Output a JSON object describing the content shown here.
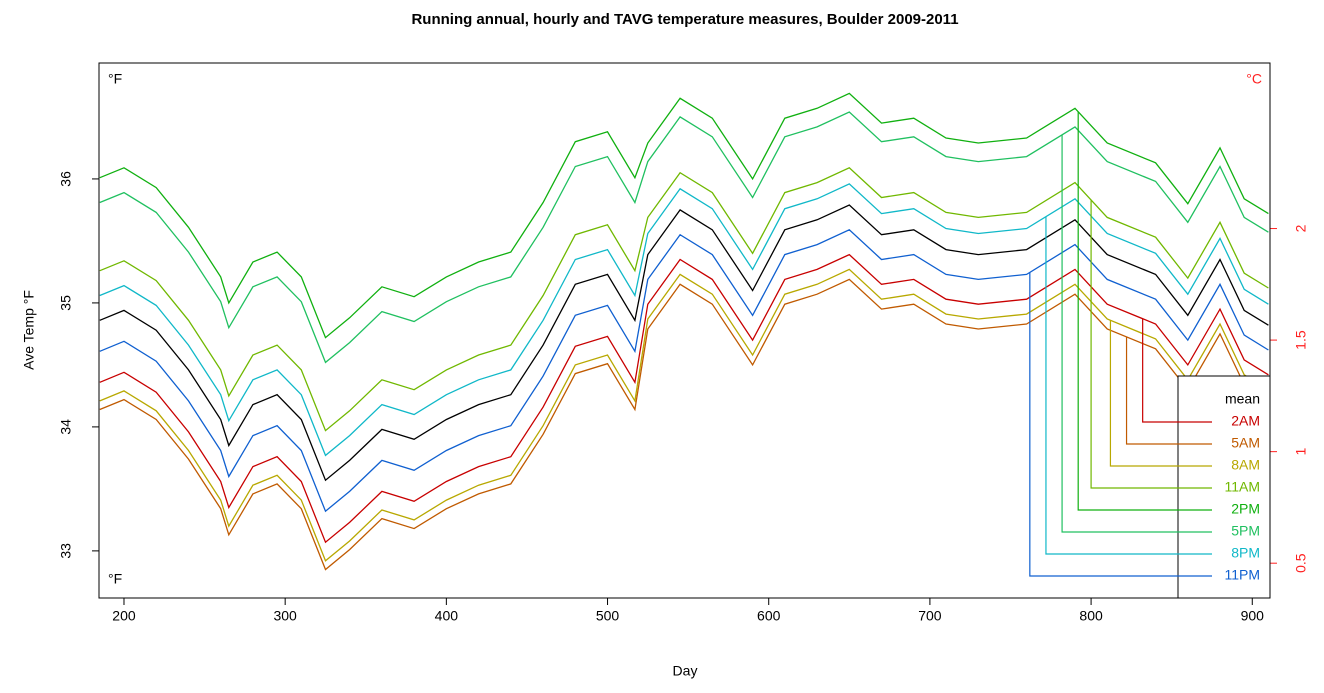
{
  "chart_data": {
    "type": "line",
    "title": "Running annual, hourly and TAVG temperature measures, Boulder 2009-2011",
    "x_label": "Day",
    "y_label": "Ave Temp °F",
    "corner_labels": {
      "top_left": "°F",
      "bottom_left": "°F",
      "top_right": "°C"
    },
    "xlim": [
      184.5,
      911
    ],
    "xticks": [
      200,
      300,
      400,
      500,
      600,
      700,
      800,
      900
    ],
    "ylim": [
      32.62,
      36.935
    ],
    "yticks": [
      33,
      34,
      35,
      36
    ],
    "y2lim": [
      0.344,
      2.742
    ],
    "y2ticks": [
      0.5,
      1,
      1.5,
      2
    ],
    "y2color": "#ff2020",
    "legend_position": "bottom-right",
    "x": [
      185,
      200,
      220,
      240,
      260,
      265,
      280,
      295,
      310,
      325,
      340,
      360,
      380,
      400,
      420,
      440,
      460,
      480,
      500,
      517,
      525,
      545,
      565,
      590,
      610,
      630,
      650,
      670,
      690,
      710,
      730,
      760,
      790,
      810,
      840,
      860,
      880,
      895,
      910
    ],
    "series": [
      {
        "name": "mean",
        "color": "#000000",
        "values": [
          34.86,
          34.94,
          34.78,
          34.46,
          34.06,
          33.85,
          34.18,
          34.26,
          34.06,
          33.57,
          33.73,
          33.98,
          33.9,
          34.06,
          34.18,
          34.26,
          34.66,
          35.15,
          35.23,
          34.86,
          35.39,
          35.75,
          35.59,
          35.1,
          35.59,
          35.67,
          35.79,
          35.55,
          35.59,
          35.43,
          35.39,
          35.43,
          35.67,
          35.39,
          35.23,
          34.9,
          35.35,
          34.94,
          34.82
        ]
      },
      {
        "name": "2AM",
        "color": "#c80000",
        "values": [
          34.36,
          34.44,
          34.28,
          33.96,
          33.56,
          33.35,
          33.68,
          33.76,
          33.56,
          33.07,
          33.23,
          33.48,
          33.4,
          33.56,
          33.68,
          33.76,
          34.16,
          34.65,
          34.73,
          34.36,
          34.99,
          35.35,
          35.19,
          34.7,
          35.19,
          35.27,
          35.39,
          35.15,
          35.19,
          35.03,
          34.99,
          35.03,
          35.27,
          34.99,
          34.83,
          34.5,
          34.95,
          34.54,
          34.42
        ]
      },
      {
        "name": "5AM",
        "color": "#c05a00",
        "values": [
          34.14,
          34.22,
          34.06,
          33.74,
          33.34,
          33.13,
          33.46,
          33.54,
          33.34,
          32.85,
          33.01,
          33.26,
          33.18,
          33.34,
          33.46,
          33.54,
          33.94,
          34.43,
          34.51,
          34.14,
          34.79,
          35.15,
          34.99,
          34.5,
          34.99,
          35.07,
          35.19,
          34.95,
          34.99,
          34.83,
          34.79,
          34.83,
          35.07,
          34.79,
          34.63,
          34.3,
          34.75,
          34.34,
          34.22
        ]
      },
      {
        "name": "8AM",
        "color": "#b8a800",
        "values": [
          34.21,
          34.29,
          34.13,
          33.81,
          33.41,
          33.2,
          33.53,
          33.61,
          33.41,
          32.92,
          33.08,
          33.33,
          33.25,
          33.41,
          33.53,
          33.61,
          34.01,
          34.5,
          34.58,
          34.21,
          34.87,
          35.23,
          35.07,
          34.58,
          35.07,
          35.15,
          35.27,
          35.03,
          35.07,
          34.91,
          34.87,
          34.91,
          35.15,
          34.87,
          34.71,
          34.38,
          34.83,
          34.42,
          34.3
        ]
      },
      {
        "name": "11AM",
        "color": "#70b800",
        "values": [
          35.26,
          35.34,
          35.18,
          34.86,
          34.46,
          34.25,
          34.58,
          34.66,
          34.46,
          33.97,
          34.13,
          34.38,
          34.3,
          34.46,
          34.58,
          34.66,
          35.06,
          35.55,
          35.63,
          35.26,
          35.69,
          36.05,
          35.89,
          35.4,
          35.89,
          35.97,
          36.09,
          35.85,
          35.89,
          35.73,
          35.69,
          35.73,
          35.97,
          35.69,
          35.53,
          35.2,
          35.65,
          35.24,
          35.12
        ]
      },
      {
        "name": "2PM",
        "color": "#10b010",
        "values": [
          36.01,
          36.09,
          35.93,
          35.61,
          35.21,
          35.0,
          35.33,
          35.41,
          35.21,
          34.72,
          34.88,
          35.13,
          35.05,
          35.21,
          35.33,
          35.41,
          35.81,
          36.3,
          36.38,
          36.01,
          36.29,
          36.65,
          36.49,
          36.0,
          36.49,
          36.57,
          36.69,
          36.45,
          36.49,
          36.33,
          36.29,
          36.33,
          36.57,
          36.29,
          36.13,
          35.8,
          36.25,
          35.84,
          35.72
        ]
      },
      {
        "name": "5PM",
        "color": "#20c060",
        "values": [
          35.81,
          35.89,
          35.73,
          35.41,
          35.01,
          34.8,
          35.13,
          35.21,
          35.01,
          34.52,
          34.68,
          34.93,
          34.85,
          35.01,
          35.13,
          35.21,
          35.61,
          36.1,
          36.18,
          35.81,
          36.14,
          36.5,
          36.34,
          35.85,
          36.34,
          36.42,
          36.54,
          36.3,
          36.34,
          36.18,
          36.14,
          36.18,
          36.42,
          36.14,
          35.98,
          35.65,
          36.1,
          35.69,
          35.57
        ]
      },
      {
        "name": "8PM",
        "color": "#10b8c8",
        "values": [
          35.06,
          35.14,
          34.98,
          34.66,
          34.26,
          34.05,
          34.38,
          34.46,
          34.26,
          33.77,
          33.93,
          34.18,
          34.1,
          34.26,
          34.38,
          34.46,
          34.86,
          35.35,
          35.43,
          35.06,
          35.56,
          35.92,
          35.76,
          35.27,
          35.76,
          35.84,
          35.96,
          35.72,
          35.76,
          35.6,
          35.56,
          35.6,
          35.84,
          35.56,
          35.4,
          35.07,
          35.52,
          35.11,
          34.99
        ]
      },
      {
        "name": "11PM",
        "color": "#1060d0",
        "values": [
          34.61,
          34.69,
          34.53,
          34.21,
          33.81,
          33.6,
          33.93,
          34.01,
          33.81,
          33.32,
          33.48,
          33.73,
          33.65,
          33.81,
          33.93,
          34.01,
          34.41,
          34.9,
          34.98,
          34.61,
          35.19,
          35.55,
          35.39,
          34.9,
          35.39,
          35.47,
          35.59,
          35.35,
          35.39,
          35.23,
          35.19,
          35.23,
          35.47,
          35.19,
          35.03,
          34.7,
          35.15,
          34.74,
          34.62
        ]
      }
    ]
  }
}
